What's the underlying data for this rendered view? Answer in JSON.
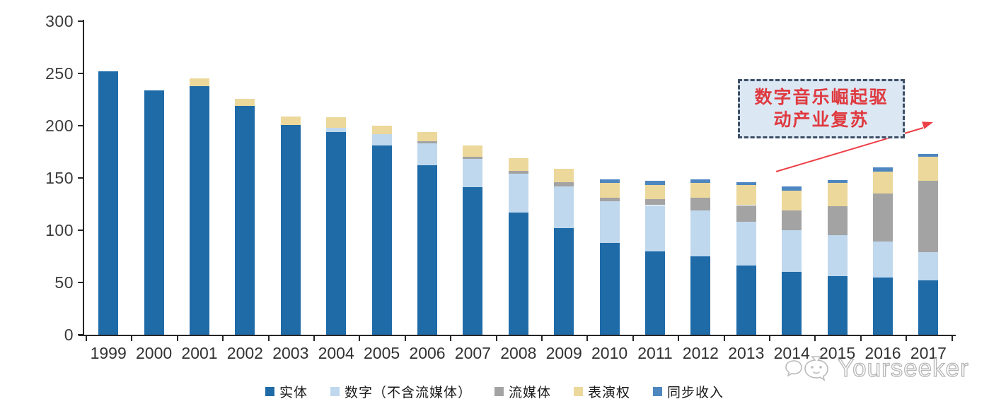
{
  "chart_data": {
    "type": "bar",
    "stacked": true,
    "title": "",
    "xlabel": "",
    "ylabel": "",
    "categories": [
      "1999",
      "2000",
      "2001",
      "2002",
      "2003",
      "2004",
      "2005",
      "2006",
      "2007",
      "2008",
      "2009",
      "2010",
      "2011",
      "2012",
      "2013",
      "2014",
      "2015",
      "2016",
      "2017"
    ],
    "series": [
      {
        "name": "实体",
        "color": "#1F6BA8",
        "values": [
          252,
          234,
          238,
          219,
          201,
          194,
          181,
          162,
          141,
          117,
          102,
          88,
          80,
          75,
          66,
          60,
          56,
          55,
          52
        ]
      },
      {
        "name": "数字（不含流媒体）",
        "color": "#BFD8EE",
        "values": [
          0,
          0,
          0,
          0,
          0,
          4,
          11,
          21,
          27,
          37,
          40,
          40,
          44,
          44,
          42,
          40,
          39,
          34,
          27
        ]
      },
      {
        "name": "流媒体",
        "color": "#A3A3A3",
        "values": [
          0,
          0,
          0,
          0,
          0,
          0,
          0,
          2,
          2,
          3,
          4,
          3,
          6,
          12,
          16,
          19,
          28,
          46,
          68
        ]
      },
      {
        "name": "表演权",
        "color": "#ECD89B",
        "values": [
          0,
          0,
          7,
          7,
          8,
          10,
          8,
          9,
          11,
          12,
          13,
          14,
          13,
          14,
          19,
          19,
          22,
          21,
          23
        ]
      },
      {
        "name": "同步收入",
        "color": "#4E86C0",
        "values": [
          0,
          0,
          0,
          0,
          0,
          0,
          0,
          0,
          0,
          0,
          0,
          4,
          4,
          4,
          3,
          4,
          3,
          4,
          3
        ]
      }
    ],
    "ylim": [
      0,
      300
    ],
    "yticks": [
      0,
      50,
      100,
      150,
      200,
      250,
      300
    ],
    "grid": false,
    "legend_position": "bottom"
  },
  "annotation": {
    "line1": "数字音乐崛起驱",
    "line2": "动产业复苏",
    "text_color": "#DF3A40",
    "box_fill": "#DBE8F4",
    "box_border": "#3D4E66",
    "arrow_color": "#ED3F46"
  },
  "watermark": {
    "text": "Yourseeker",
    "color": "#ADADAD"
  },
  "axis": {
    "line_color": "#262626",
    "label_color": "#3A3A3A"
  }
}
